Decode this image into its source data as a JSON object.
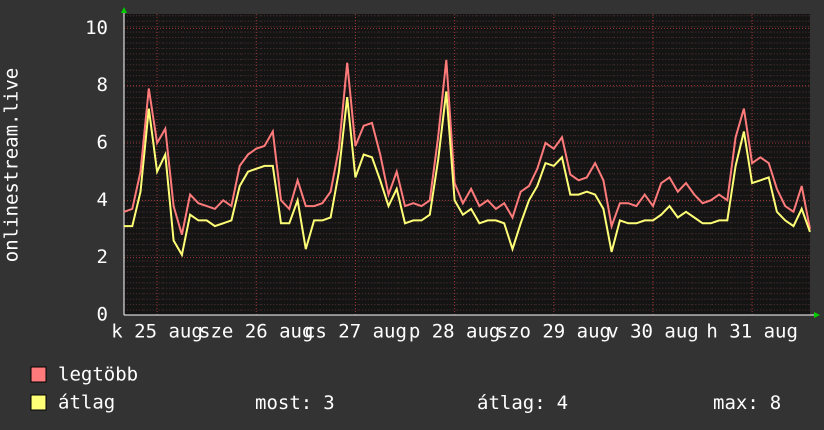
{
  "chart_data": {
    "type": "line",
    "y_label": "onlinestream.live",
    "categories": [
      null,
      null,
      null,
      null,
      "k 25 aug",
      null,
      null,
      null,
      null,
      null,
      null,
      null,
      null,
      null,
      null,
      null,
      "sze 26 aug",
      null,
      null,
      null,
      null,
      null,
      null,
      null,
      null,
      null,
      null,
      null,
      "cs 27 aug",
      null,
      null,
      null,
      null,
      null,
      null,
      null,
      null,
      null,
      null,
      null,
      "p 28 aug",
      null,
      null,
      null,
      null,
      null,
      null,
      null,
      null,
      null,
      null,
      null,
      "szo 29 aug",
      null,
      null,
      null,
      null,
      null,
      null,
      null,
      null,
      null,
      null,
      null,
      "v 30 aug",
      null,
      null,
      null,
      null,
      null,
      null,
      null,
      null,
      null,
      null,
      null,
      "h 31 aug",
      null,
      null,
      null,
      null,
      null,
      null,
      null
    ],
    "series": [
      {
        "name": "legtöbb",
        "color": "#ff7b7b",
        "values": [
          3.6,
          3.7,
          5.0,
          7.9,
          6.0,
          6.5,
          3.8,
          2.8,
          4.2,
          3.9,
          3.8,
          3.7,
          4.0,
          3.8,
          5.2,
          5.6,
          5.8,
          5.9,
          6.4,
          4.0,
          3.7,
          4.7,
          3.8,
          3.8,
          3.9,
          4.3,
          5.8,
          8.8,
          5.9,
          6.6,
          6.7,
          5.6,
          4.2,
          5.0,
          3.8,
          3.9,
          3.8,
          4.0,
          6.2,
          8.9,
          4.6,
          3.9,
          4.4,
          3.8,
          4.0,
          3.7,
          3.9,
          3.4,
          4.3,
          4.5,
          5.1,
          6.0,
          5.8,
          6.2,
          4.9,
          4.7,
          4.8,
          5.3,
          4.7,
          3.1,
          3.9,
          3.9,
          3.8,
          4.2,
          3.8,
          4.6,
          4.8,
          4.3,
          4.6,
          4.2,
          3.9,
          4.0,
          4.2,
          4.0,
          6.2,
          7.2,
          5.3,
          5.5,
          5.3,
          4.4,
          3.8,
          3.6,
          4.5,
          3.0
        ]
      },
      {
        "name": "átlag",
        "color": "#ffff77",
        "values": [
          3.1,
          3.1,
          4.3,
          7.2,
          5.0,
          5.6,
          2.6,
          2.1,
          3.5,
          3.3,
          3.3,
          3.1,
          3.2,
          3.3,
          4.5,
          5.0,
          5.1,
          5.2,
          5.2,
          3.2,
          3.2,
          4.0,
          2.3,
          3.3,
          3.3,
          3.4,
          5.0,
          7.6,
          4.8,
          5.6,
          5.5,
          4.7,
          3.8,
          4.4,
          3.2,
          3.3,
          3.3,
          3.5,
          5.4,
          7.8,
          4.0,
          3.5,
          3.7,
          3.2,
          3.3,
          3.3,
          3.2,
          2.3,
          3.2,
          4.0,
          4.5,
          5.3,
          5.2,
          5.5,
          4.2,
          4.2,
          4.3,
          4.2,
          3.7,
          2.2,
          3.3,
          3.2,
          3.2,
          3.3,
          3.3,
          3.5,
          3.8,
          3.4,
          3.6,
          3.4,
          3.2,
          3.2,
          3.3,
          3.3,
          5.2,
          6.4,
          4.6,
          4.7,
          4.8,
          3.6,
          3.3,
          3.1,
          3.7,
          2.9
        ]
      }
    ],
    "ylim": [
      0,
      10.5
    ],
    "yticks": [
      0,
      2,
      4,
      6,
      8,
      10
    ],
    "grid": true,
    "stats": [
      {
        "label": "most:",
        "value": 3
      },
      {
        "label": "átlag:",
        "value": 4
      },
      {
        "label": "max:",
        "value": 8
      }
    ]
  }
}
